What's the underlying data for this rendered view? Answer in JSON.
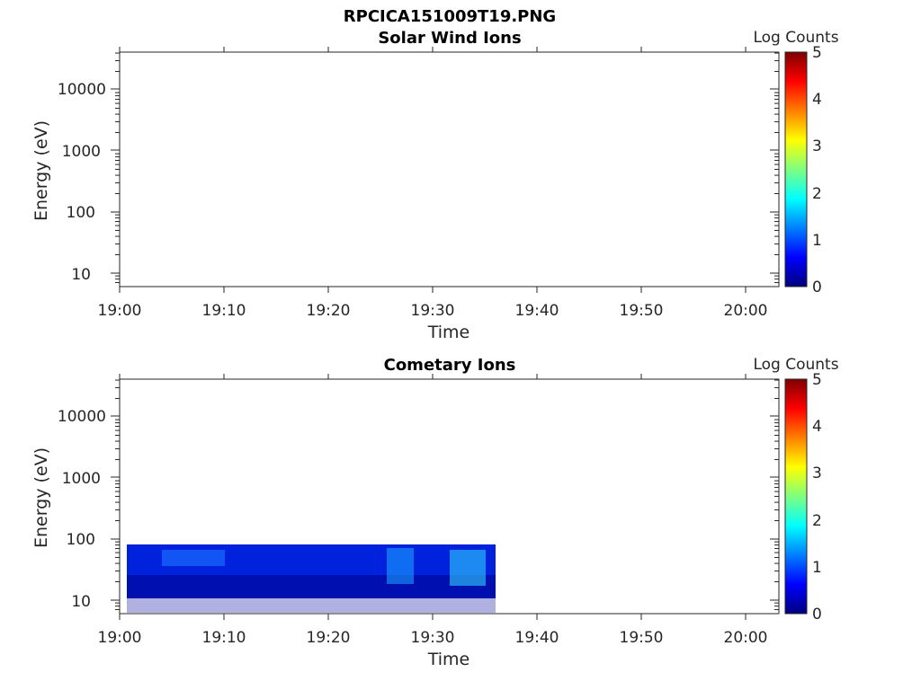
{
  "figure_title": "RPCICA151009T19.PNG",
  "colors": {
    "axis": "#262626",
    "colormap": [
      "#00007f",
      "#0000ff",
      "#007fff",
      "#00ffff",
      "#7fff7f",
      "#ffff00",
      "#ff7f00",
      "#ff0000",
      "#7f0000"
    ]
  },
  "chart_data": [
    {
      "type": "heatmap",
      "title": "Solar Wind Ions",
      "xlabel": "Time",
      "ylabel": "Energy (eV)",
      "x_ticks": [
        "19:00",
        "19:10",
        "19:20",
        "19:30",
        "19:40",
        "19:50",
        "20:00"
      ],
      "y_ticks": [
        "10",
        "100",
        "1000",
        "10000"
      ],
      "y_scale": "log",
      "colorbar": {
        "label": "Log Counts",
        "ticks": [
          "0",
          "1",
          "2",
          "3",
          "4",
          "5"
        ],
        "range": [
          0,
          5
        ]
      },
      "data_present": false
    },
    {
      "type": "heatmap",
      "title": "Cometary Ions",
      "xlabel": "Time",
      "ylabel": "Energy (eV)",
      "x_ticks": [
        "19:00",
        "19:10",
        "19:20",
        "19:30",
        "19:40",
        "19:50",
        "20:00"
      ],
      "y_ticks": [
        "10",
        "100",
        "1000",
        "10000"
      ],
      "y_scale": "log",
      "colorbar": {
        "label": "Log Counts",
        "ticks": [
          "0",
          "1",
          "2",
          "3",
          "4",
          "5"
        ],
        "range": [
          0,
          5
        ]
      },
      "data_present": true,
      "data_time_range": [
        "19:00",
        "19:36"
      ],
      "data_energy_range_ev": [
        6,
        80
      ]
    }
  ]
}
